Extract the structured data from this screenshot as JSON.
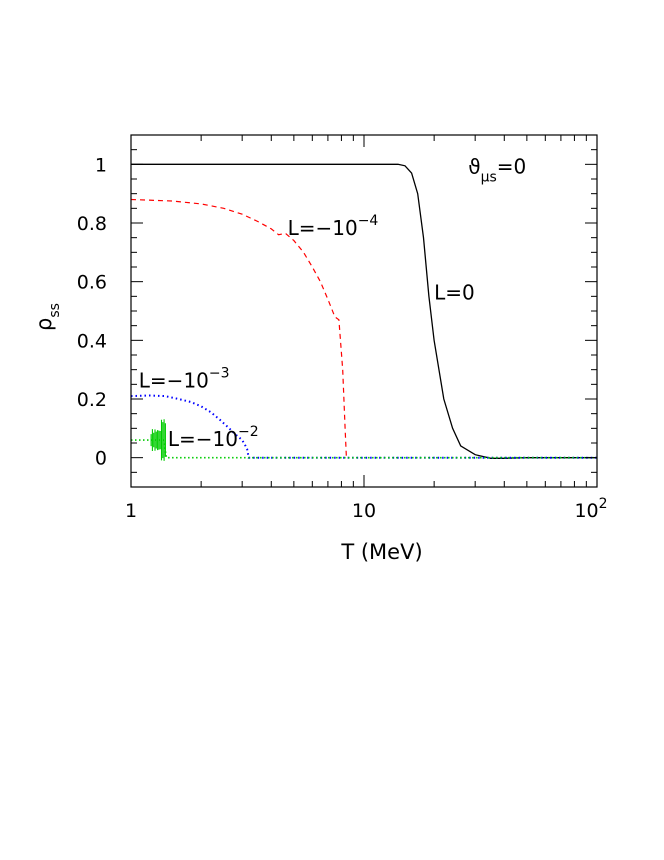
{
  "chart_data": {
    "type": "line",
    "xlabel": "T (MeV)",
    "ylabel": {
      "main": "ρ",
      "sub": "ss"
    },
    "x_scale": "log",
    "xlim": [
      1,
      100
    ],
    "ylim": [
      -0.1,
      1.1
    ],
    "x_ticks": [
      {
        "value": 1,
        "label": "1"
      },
      {
        "value": 10,
        "label": "10"
      },
      {
        "value": 100,
        "label": "10",
        "sup": "2"
      }
    ],
    "y_ticks": [
      {
        "value": 0,
        "label": "0"
      },
      {
        "value": 0.2,
        "label": "0.2"
      },
      {
        "value": 0.4,
        "label": "0.4"
      },
      {
        "value": 0.6,
        "label": "0.6"
      },
      {
        "value": 0.8,
        "label": "0.8"
      },
      {
        "value": 1.0,
        "label": "1"
      }
    ],
    "grid": false,
    "colors": {
      "L0": "#000000",
      "L1e-4": "#ff0000",
      "L1e-3": "#0000ff",
      "L1e-2": "#00cc00"
    },
    "series": [
      {
        "name": "L=0",
        "style": "solid",
        "points": [
          [
            1,
            1.0
          ],
          [
            12,
            1.0
          ],
          [
            14,
            1.0
          ],
          [
            15,
            0.995
          ],
          [
            16,
            0.97
          ],
          [
            17,
            0.9
          ],
          [
            18,
            0.75
          ],
          [
            19,
            0.55
          ],
          [
            20,
            0.4
          ],
          [
            22,
            0.2
          ],
          [
            24,
            0.1
          ],
          [
            26,
            0.04
          ],
          [
            30,
            0.01
          ],
          [
            35,
            -0.002
          ],
          [
            40,
            -0.002
          ],
          [
            50,
            0.0
          ],
          [
            100,
            0.0
          ]
        ]
      },
      {
        "name": "L=−10^−4",
        "style": "dashed",
        "points": [
          [
            1,
            0.88
          ],
          [
            1.5,
            0.875
          ],
          [
            2,
            0.865
          ],
          [
            2.5,
            0.85
          ],
          [
            3,
            0.83
          ],
          [
            3.5,
            0.805
          ],
          [
            4,
            0.78
          ],
          [
            4.3,
            0.76
          ],
          [
            4.6,
            0.765
          ],
          [
            5,
            0.74
          ],
          [
            5.5,
            0.7
          ],
          [
            6,
            0.65
          ],
          [
            6.5,
            0.6
          ],
          [
            7,
            0.54
          ],
          [
            7.5,
            0.48
          ],
          [
            7.8,
            0.47
          ],
          [
            8.1,
            0.3
          ],
          [
            8.3,
            0.1
          ],
          [
            8.4,
            0.0
          ]
        ]
      },
      {
        "name": "L=−10^−3",
        "style": "dotted",
        "points": [
          [
            1,
            0.21
          ],
          [
            1.2,
            0.212
          ],
          [
            1.4,
            0.21
          ],
          [
            1.6,
            0.2
          ],
          [
            1.8,
            0.19
          ],
          [
            2,
            0.175
          ],
          [
            2.2,
            0.155
          ],
          [
            2.4,
            0.13
          ],
          [
            2.6,
            0.105
          ],
          [
            2.8,
            0.08
          ],
          [
            3.0,
            0.06
          ],
          [
            3.1,
            0.04
          ],
          [
            3.15,
            0.03
          ],
          [
            3.2,
            0.0
          ],
          [
            5,
            0.0
          ],
          [
            100,
            0.0
          ]
        ]
      },
      {
        "name": "L=−10^−2",
        "style": "dotted",
        "points": [
          [
            1,
            0.06
          ],
          [
            1.38,
            0.06
          ],
          [
            1.42,
            0.0
          ],
          [
            2,
            0.0
          ],
          [
            100,
            0.0
          ]
        ],
        "noise_band": [
          1.22,
          1.42
        ]
      }
    ],
    "annotations": [
      {
        "id": "theta",
        "text": "ϑ",
        "sub": "μs",
        "suffix": "=0",
        "x": 28,
        "y": 0.99
      },
      {
        "id": "L0",
        "text": "L=0",
        "x": 20,
        "y": 0.56
      },
      {
        "id": "L4",
        "text": "L=−10",
        "sup": "−4",
        "x": 4.7,
        "y": 0.78
      },
      {
        "id": "L3",
        "text": "L=−10",
        "sup": "−3",
        "x": 1.08,
        "y": 0.26
      },
      {
        "id": "L2",
        "text": "L=−10",
        "sup": "−2",
        "x": 1.44,
        "y": 0.06
      }
    ]
  }
}
